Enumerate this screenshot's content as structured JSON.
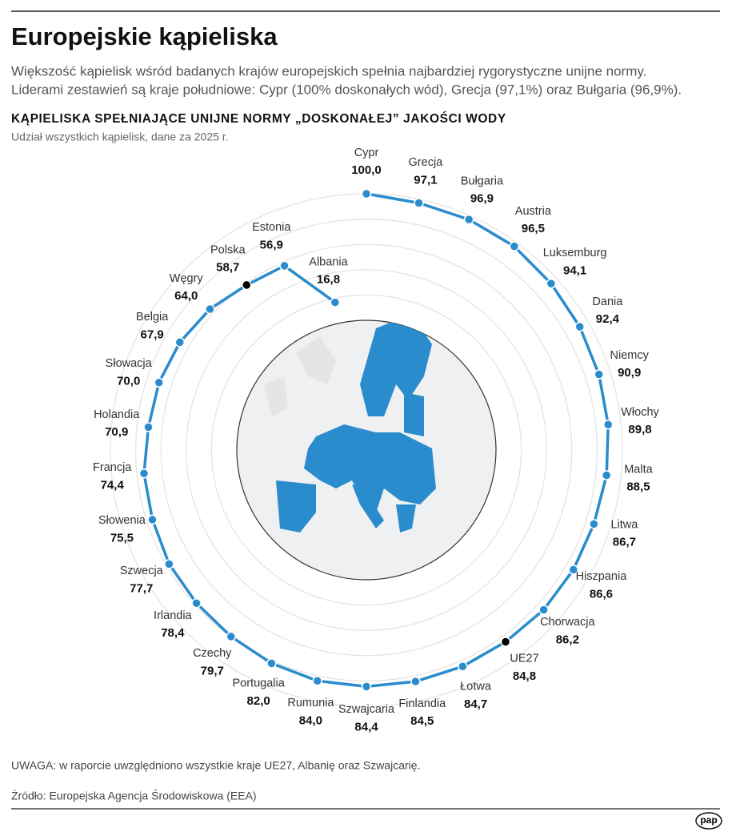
{
  "header": {
    "title": "Europejskie kąpieliska",
    "description": [
      "Większość kąpielisk wśród badanych krajów europejskich spełnia najbardziej rygorystyczne unijne normy.",
      "Liderami zestawień są kraje południowe: Cypr (100% doskonałych wód), Grecja (97,1%) oraz Bułgaria (96,9%)."
    ]
  },
  "chart_data": {
    "type": "radial-line",
    "title": "KĄPIELISKA SPEŁNIAJĄCE UNIJNE NORMY „DOSKONAŁEJ” JAKOŚCI WODY",
    "subtitle": "Udział wszystkich kąpielisk, dane za 2025 r.",
    "categories": [
      "Cypr",
      "Grecja",
      "Bułgaria",
      "Austria",
      "Luksemburg",
      "Dania",
      "Niemcy",
      "Włochy",
      "Malta",
      "Litwa",
      "Hiszpania",
      "Chorwacja",
      "UE27",
      "Łotwa",
      "Finlandia",
      "Szwajcaria",
      "Rumunia",
      "Portugalia",
      "Czechy",
      "Irlandia",
      "Szwecja",
      "Słowenia",
      "Francja",
      "Holandia",
      "Słowacja",
      "Belgia",
      "Węgry",
      "Polska",
      "Estonia",
      "Albania"
    ],
    "values": [
      100.0,
      97.1,
      96.9,
      96.5,
      94.1,
      92.4,
      90.9,
      89.8,
      88.5,
      86.7,
      86.6,
      86.2,
      84.8,
      84.7,
      84.5,
      84.4,
      84.0,
      82.0,
      79.7,
      78.4,
      77.7,
      75.5,
      74.4,
      70.9,
      70.0,
      67.9,
      64.0,
      58.7,
      56.9,
      16.8
    ],
    "value_labels": [
      "100,0",
      "97,1",
      "96,9",
      "96,5",
      "94,1",
      "92,4",
      "90,9",
      "89,8",
      "88,5",
      "86,7",
      "86,6",
      "86,2",
      "84,8",
      "84,7",
      "84,5",
      "84,4",
      "84,0",
      "82,0",
      "79,7",
      "78,4",
      "77,7",
      "75,5",
      "74,4",
      "70,9",
      "70,0",
      "67,9",
      "64,0",
      "58,7",
      "56,9",
      "16,8"
    ],
    "color": "#2a8ccc",
    "point_colors": [
      "#2a8ccc",
      "#2a8ccc",
      "#2a8ccc",
      "#2a8ccc",
      "#2a8ccc",
      "#2a8ccc",
      "#2a8ccc",
      "#2a8ccc",
      "#2a8ccc",
      "#2a8ccc",
      "#2a8ccc",
      "#2a8ccc",
      "#000000",
      "#2a8ccc",
      "#2a8ccc",
      "#2a8ccc",
      "#2a8ccc",
      "#2a8ccc",
      "#2a8ccc",
      "#2a8ccc",
      "#2a8ccc",
      "#2a8ccc",
      "#2a8ccc",
      "#2a8ccc",
      "#2a8ccc",
      "#2a8ccc",
      "#2a8ccc",
      "#000000",
      "#2a8ccc",
      "#2a8ccc"
    ],
    "rlim": [
      0,
      100
    ],
    "rticks": [
      20,
      40,
      60,
      80,
      100
    ],
    "grid": true
  },
  "footer": {
    "note": "UWAGA: w raporcie uwzględniono wszystkie kraje UE27, Albanię oraz Szwajcarię.",
    "source": "Źródło: Europejska Agencja Środowiskowa (EEA)",
    "logo": "pap"
  }
}
